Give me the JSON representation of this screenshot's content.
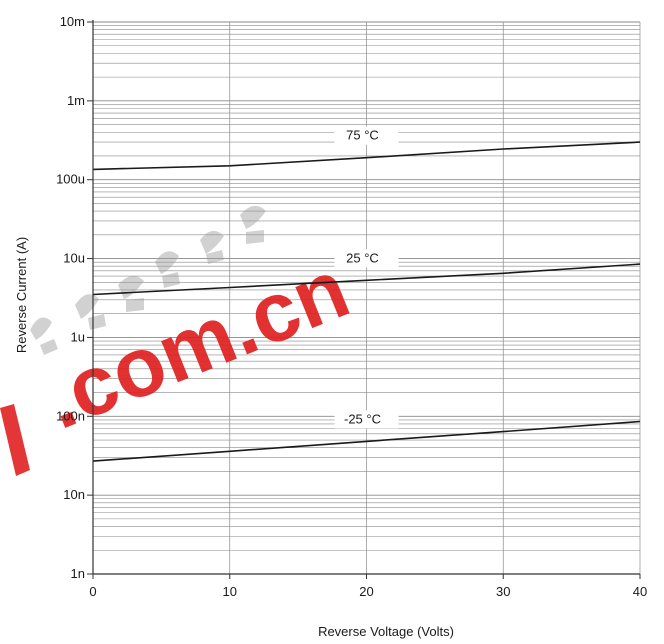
{
  "chart_data": {
    "type": "line",
    "title": "",
    "xlabel": "Reverse Voltage (Volts)",
    "ylabel": "Reverse Current (A)",
    "xlim": [
      0,
      40
    ],
    "ylim": [
      1e-09,
      0.01
    ],
    "yscale": "log",
    "grid": true,
    "x_ticks": [
      0,
      10,
      20,
      30,
      40
    ],
    "x_tick_labels": [
      "0",
      "10",
      "20",
      "30",
      "40"
    ],
    "y_ticks": [
      1e-09,
      1e-08,
      1e-07,
      1e-06,
      1e-05,
      0.0001,
      0.001,
      0.01
    ],
    "y_tick_labels": [
      "1n",
      "10n",
      "100n",
      "1u",
      "10u",
      "100u",
      "1m",
      "10m"
    ],
    "series": [
      {
        "name": "75 °C",
        "x": [
          0,
          10,
          20,
          30,
          40
        ],
        "y": [
          0.000135,
          0.00015,
          0.00019,
          0.000245,
          0.0003
        ],
        "label_x": 20
      },
      {
        "name": "25 °C",
        "x": [
          0,
          10,
          20,
          30,
          40
        ],
        "y": [
          3.5e-06,
          4.3e-06,
          5.3e-06,
          6.5e-06,
          8.5e-06
        ],
        "label_x": 20
      },
      {
        "name": "-25 °C",
        "x": [
          0,
          10,
          20,
          30,
          40
        ],
        "y": [
          2.7e-08,
          3.6e-08,
          4.8e-08,
          6.4e-08,
          8.6e-08
        ],
        "label_x": 20
      }
    ],
    "line_color": "#1a1a1a",
    "grid_color": "#8a8a8a"
  },
  "watermark": {
    "text": ".com.cn",
    "color": "#e02020"
  }
}
